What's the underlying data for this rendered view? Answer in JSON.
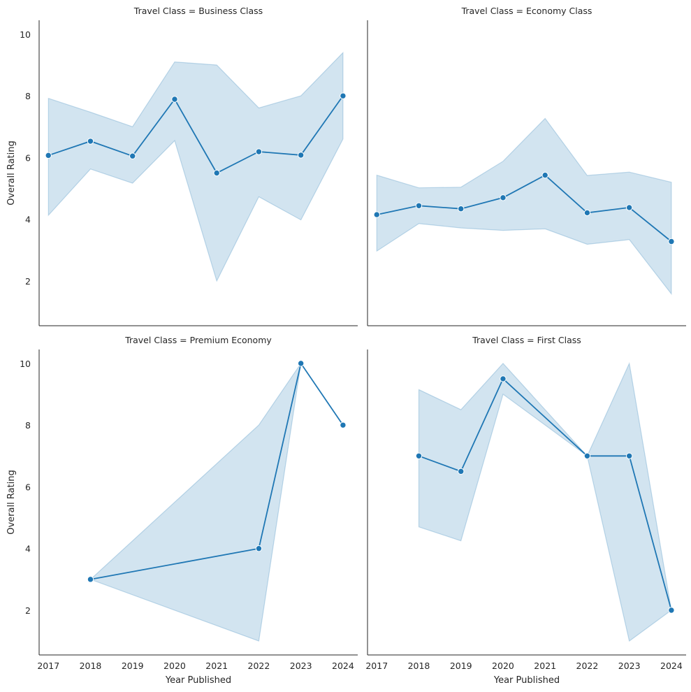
{
  "chart_data": [
    {
      "type": "line",
      "title": "Travel Class = Business Class",
      "xlabel": "",
      "ylabel": "Overall Rating",
      "x": [
        2017,
        2018,
        2019,
        2020,
        2021,
        2022,
        2023,
        2024
      ],
      "y": [
        6.07,
        6.53,
        6.05,
        7.89,
        5.5,
        6.19,
        6.08,
        8.0
      ],
      "ci_lower": [
        4.13,
        5.63,
        5.17,
        6.55,
        2.0,
        4.73,
        3.98,
        6.6
      ],
      "ci_upper": [
        7.92,
        7.47,
        7.0,
        9.1,
        9.0,
        7.61,
        8.0,
        9.4
      ],
      "xlim": [
        2016.78,
        2024.35
      ],
      "ylim": [
        0.55,
        10.45
      ],
      "xticks": [],
      "yticks": [
        2,
        4,
        6,
        8,
        10
      ],
      "grid": false
    },
    {
      "type": "line",
      "title": "Travel Class = Economy Class",
      "xlabel": "",
      "ylabel": "",
      "x": [
        2017,
        2018,
        2019,
        2020,
        2021,
        2022,
        2023,
        2024
      ],
      "y": [
        4.15,
        4.44,
        4.34,
        4.7,
        5.43,
        4.21,
        4.38,
        3.28
      ],
      "ci_lower": [
        2.97,
        3.86,
        3.72,
        3.64,
        3.69,
        3.19,
        3.34,
        1.58
      ],
      "ci_upper": [
        5.43,
        5.02,
        5.04,
        5.88,
        7.27,
        5.42,
        5.53,
        5.2
      ],
      "xlim": [
        2016.78,
        2024.35
      ],
      "ylim": [
        0.55,
        10.45
      ],
      "xticks": [],
      "yticks": [],
      "grid": false
    },
    {
      "type": "line",
      "title": "Travel Class = Premium Economy",
      "xlabel": "Year Published",
      "ylabel": "Overall Rating",
      "x": [
        2018,
        2022,
        2023,
        2024
      ],
      "y": [
        3.0,
        4.0,
        10.0,
        8.0
      ],
      "ci_lower": [
        3.0,
        1.0,
        10.0,
        8.0
      ],
      "ci_upper": [
        3.0,
        8.0,
        10.0,
        8.0
      ],
      "xlim": [
        2016.78,
        2024.35
      ],
      "ylim": [
        0.55,
        10.45
      ],
      "xticks": [
        2017,
        2018,
        2019,
        2020,
        2021,
        2022,
        2023,
        2024
      ],
      "yticks": [
        2,
        4,
        6,
        8,
        10
      ],
      "grid": false
    },
    {
      "type": "line",
      "title": "Travel Class = First Class",
      "xlabel": "Year Published",
      "ylabel": "",
      "x": [
        2018,
        2019,
        2020,
        2022,
        2023,
        2024
      ],
      "y": [
        7.0,
        6.5,
        9.5,
        7.0,
        7.0,
        2.0
      ],
      "ci_lower": [
        4.7,
        4.25,
        9.0,
        7.0,
        1.0,
        2.0
      ],
      "ci_upper": [
        9.15,
        8.5,
        10.0,
        7.0,
        10.0,
        2.0
      ],
      "xlim": [
        2016.78,
        2024.35
      ],
      "ylim": [
        0.55,
        10.45
      ],
      "xticks": [
        2017,
        2018,
        2019,
        2020,
        2021,
        2022,
        2023,
        2024
      ],
      "yticks": [],
      "grid": false
    }
  ],
  "colors": {
    "line": "#1f77b4",
    "band": "#1f77b4",
    "axis": "#262626",
    "marker_edge": "#ffffff"
  }
}
